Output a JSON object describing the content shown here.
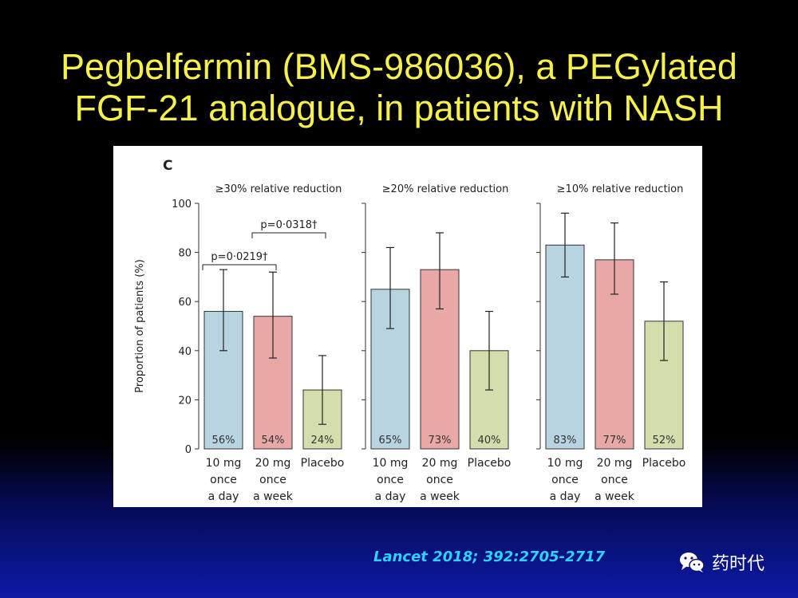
{
  "slide": {
    "title_line1": "Pegbelfermin (BMS-986036), a PEGylated",
    "title_line2": "FGF-21 analogue, in patients with NASH",
    "citation": "Lancet 2018; 392:2705-2717",
    "watermark": "药时代",
    "watermark_icon": "wechat-icon"
  },
  "colors": {
    "title": "#f5f04a",
    "citation": "#2ed3ff",
    "bar_10mg": "#b8d4e0",
    "bar_20mg": "#e8a9a6",
    "bar_placebo": "#d3deac"
  },
  "chart_data": {
    "type": "bar",
    "panel_letter": "C",
    "ylabel": "Proportion of patients (%)",
    "ylim": [
      0,
      100
    ],
    "yticks": [
      0,
      20,
      40,
      60,
      80,
      100
    ],
    "categories": [
      [
        "10 mg",
        "once",
        "a day"
      ],
      [
        "20 mg",
        "once",
        "a week"
      ],
      [
        "Placebo"
      ]
    ],
    "panels": [
      {
        "title": "≥30% relative reduction",
        "values": [
          56,
          54,
          24
        ],
        "labels": [
          "56%",
          "54%",
          "24%"
        ],
        "ci": [
          [
            40,
            73
          ],
          [
            37,
            72
          ],
          [
            10,
            38
          ]
        ],
        "annotations": [
          {
            "text": "p=0·0219†",
            "from": 0,
            "to": 1,
            "level": 75
          },
          {
            "text": "p=0·0318†",
            "from": 1,
            "to": 2,
            "level": 88
          }
        ]
      },
      {
        "title": "≥20% relative reduction",
        "values": [
          65,
          73,
          40
        ],
        "labels": [
          "65%",
          "73%",
          "40%"
        ],
        "ci": [
          [
            49,
            82
          ],
          [
            57,
            88
          ],
          [
            24,
            56
          ]
        ],
        "annotations": []
      },
      {
        "title": "≥10% relative reduction",
        "values": [
          83,
          77,
          52
        ],
        "labels": [
          "83%",
          "77%",
          "52%"
        ],
        "ci": [
          [
            70,
            96
          ],
          [
            63,
            92
          ],
          [
            36,
            68
          ]
        ],
        "annotations": []
      }
    ]
  }
}
